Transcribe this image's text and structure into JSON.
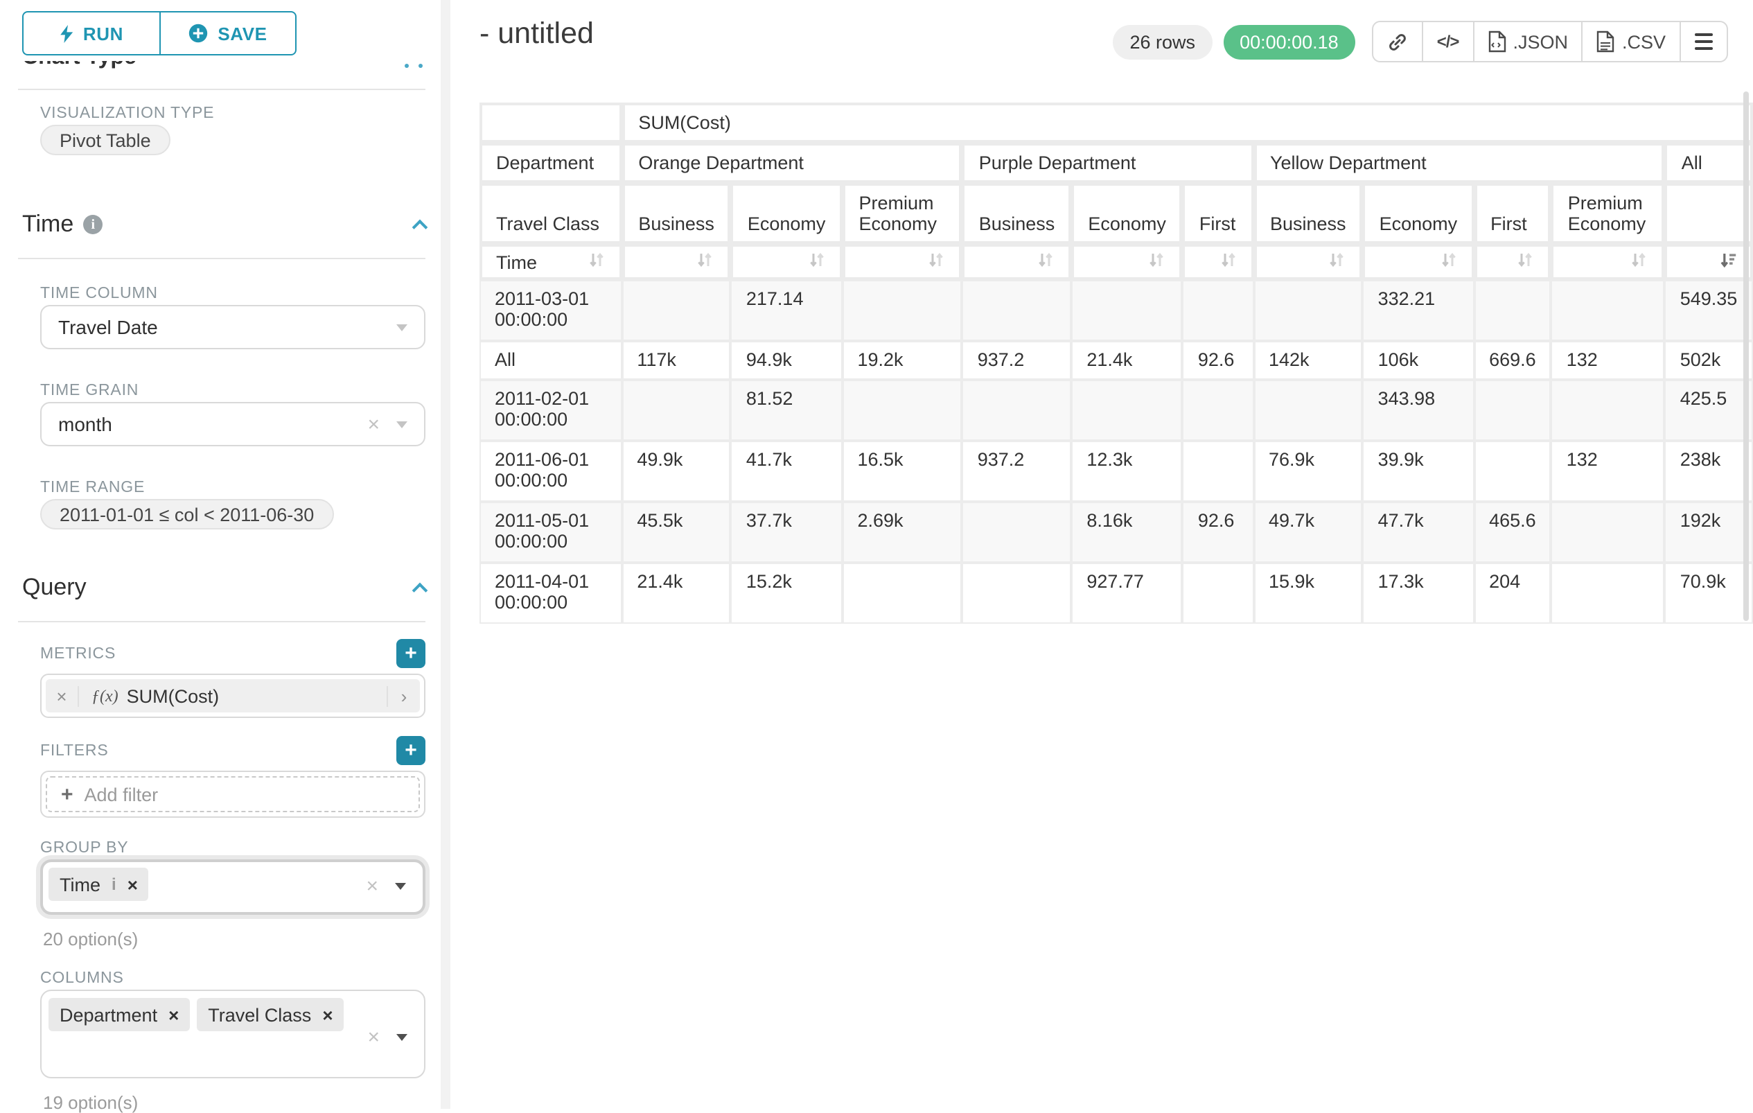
{
  "colors": {
    "primary": "#2089a6",
    "primary_light": "#3da3c4",
    "success": "#5ac189"
  },
  "sidebar": {
    "run_label": "RUN",
    "save_label": "SAVE",
    "chart_type_heading": "Chart Type",
    "visualization_type_label": "VISUALIZATION TYPE",
    "visualization_type_value": "Pivot Table",
    "time_section_title": "Time",
    "time_column_label": "TIME COLUMN",
    "time_column_value": "Travel Date",
    "time_grain_label": "TIME GRAIN",
    "time_grain_value": "month",
    "time_range_label": "TIME RANGE",
    "time_range_value": "2011-01-01 ≤ col < 2011-06-30",
    "query_section_title": "Query",
    "metrics_label": "METRICS",
    "metric_fx": "ƒ(x)",
    "metric_value": "SUM(Cost)",
    "filters_label": "FILTERS",
    "add_filter_label": "Add filter",
    "group_by_label": "GROUP BY",
    "group_by_tags": [
      "Time"
    ],
    "group_by_hint": "20 option(s)",
    "columns_label": "COLUMNS",
    "columns_tags": [
      "Department",
      "Travel Class"
    ],
    "columns_hint": "19 option(s)"
  },
  "header": {
    "title": "- untitled",
    "row_count": "26 rows",
    "timer": "00:00:00.18",
    "json_label": ".JSON",
    "csv_label": ".CSV"
  },
  "pivot": {
    "metric_header": "SUM(Cost)",
    "department_label": "Department",
    "travel_class_label": "Travel Class",
    "time_label": "Time",
    "all_label": "All",
    "col_groups": [
      {
        "label": "Orange Department",
        "classes": [
          "Business",
          "Economy",
          "Premium Economy"
        ]
      },
      {
        "label": "Purple Department",
        "classes": [
          "Business",
          "Economy",
          "First"
        ]
      },
      {
        "label": "Yellow Department",
        "classes": [
          "Business",
          "Economy",
          "First",
          "Premium Economy"
        ]
      }
    ],
    "rows": [
      {
        "label": "2011-03-01 00:00:00",
        "values": [
          "",
          "217.14",
          "",
          "",
          "",
          "",
          "",
          "332.21",
          "",
          "",
          "549.35"
        ]
      },
      {
        "label": "All",
        "values": [
          "117k",
          "94.9k",
          "19.2k",
          "937.2",
          "21.4k",
          "92.6",
          "142k",
          "106k",
          "669.6",
          "132",
          "502k"
        ]
      },
      {
        "label": "2011-02-01 00:00:00",
        "values": [
          "",
          "81.52",
          "",
          "",
          "",
          "",
          "",
          "343.98",
          "",
          "",
          "425.5"
        ]
      },
      {
        "label": "2011-06-01 00:00:00",
        "values": [
          "49.9k",
          "41.7k",
          "16.5k",
          "937.2",
          "12.3k",
          "",
          "76.9k",
          "39.9k",
          "",
          "132",
          "238k"
        ]
      },
      {
        "label": "2011-05-01 00:00:00",
        "values": [
          "45.5k",
          "37.7k",
          "2.69k",
          "",
          "8.16k",
          "92.6",
          "49.7k",
          "47.7k",
          "465.6",
          "",
          "192k"
        ]
      },
      {
        "label": "2011-04-01 00:00:00",
        "values": [
          "21.4k",
          "15.2k",
          "",
          "",
          "927.77",
          "",
          "15.9k",
          "17.3k",
          "204",
          "",
          "70.9k"
        ]
      }
    ]
  }
}
